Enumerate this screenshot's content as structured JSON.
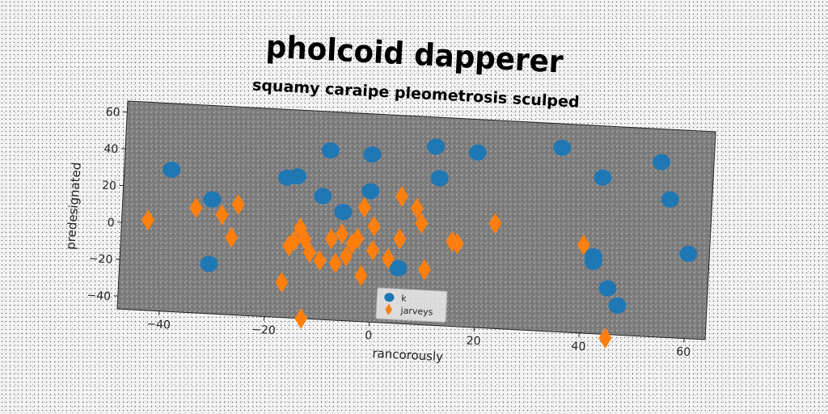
{
  "chart_data": {
    "type": "scatter",
    "title": "pholcoid dapperer",
    "subtitle": "squamy caraipe pleometrosis sculped",
    "xlabel": "rancorously",
    "ylabel": "predesignated",
    "xlim": [
      -48,
      64
    ],
    "ylim": [
      -47,
      66
    ],
    "xticks": [
      -40,
      -20,
      0,
      20,
      40,
      60
    ],
    "yticks": [
      -40,
      -20,
      0,
      20,
      40,
      60
    ],
    "xtick_labels": [
      "−40",
      "−20",
      "0",
      "20",
      "40",
      "60"
    ],
    "ytick_labels": [
      "−40",
      "−20",
      "0",
      "20",
      "40",
      "60"
    ],
    "grid": false,
    "legend_position": "lower-center",
    "series": [
      {
        "name": "k",
        "marker": "circle",
        "color": "#1f77b4",
        "points": [
          [
            -39,
            30
          ],
          [
            -31,
            15
          ],
          [
            -31,
            -20
          ],
          [
            -17,
            29
          ],
          [
            -15,
            30
          ],
          [
            -10,
            20
          ],
          [
            -9,
            45
          ],
          [
            -6,
            12
          ],
          [
            -1,
            44
          ],
          [
            -1,
            24
          ],
          [
            5,
            -17
          ],
          [
            11,
            50
          ],
          [
            12,
            33
          ],
          [
            19,
            48
          ],
          [
            35,
            53
          ],
          [
            42,
            -8
          ],
          [
            42,
            -5
          ],
          [
            43,
            38
          ],
          [
            45,
            -22
          ],
          [
            47,
            -31
          ],
          [
            54,
            48
          ],
          [
            56,
            28
          ],
          [
            60,
            -1
          ]
        ]
      },
      {
        "name": "jarveys",
        "marker": "diamond",
        "color": "#ff7f0e",
        "points": [
          [
            -43,
            2
          ],
          [
            -34,
            10
          ],
          [
            -29,
            7
          ],
          [
            -26,
            13
          ],
          [
            -27,
            -5
          ],
          [
            -17,
            -28
          ],
          [
            -16,
            -8
          ],
          [
            -15,
            -5
          ],
          [
            -14,
            2
          ],
          [
            -13,
            -4
          ],
          [
            -12,
            -11
          ],
          [
            -13,
            -47
          ],
          [
            -10,
            -15
          ],
          [
            -8,
            -3
          ],
          [
            -7,
            -16
          ],
          [
            -6,
            0
          ],
          [
            -5,
            -12
          ],
          [
            -4,
            -5
          ],
          [
            -3,
            -2
          ],
          [
            -2,
            -22
          ],
          [
            -2,
            15
          ],
          [
            0,
            -8
          ],
          [
            0,
            5
          ],
          [
            3,
            -12
          ],
          [
            5,
            -1
          ],
          [
            5,
            22
          ],
          [
            8,
            16
          ],
          [
            9,
            8
          ],
          [
            10,
            -17
          ],
          [
            15,
            -1
          ],
          [
            16,
            -2
          ],
          [
            23,
            10
          ],
          [
            40,
            1
          ],
          [
            45,
            -49
          ]
        ]
      }
    ]
  }
}
